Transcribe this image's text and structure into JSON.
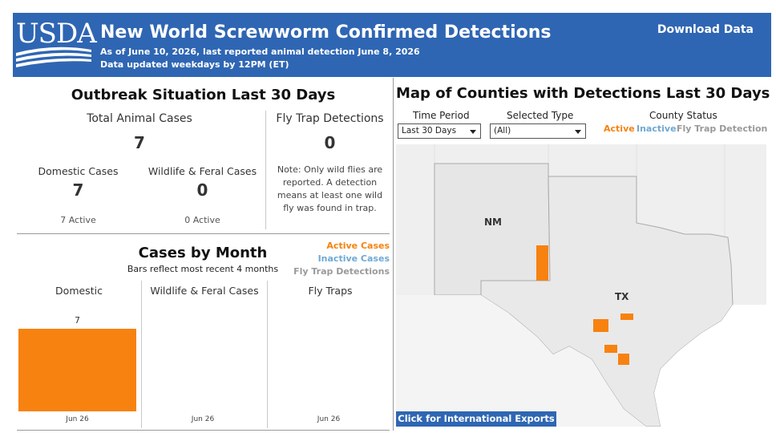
{
  "header": {
    "logo_text": "USDA",
    "title": "New World Screwworm Confirmed Detections",
    "subtitle_1": "As of June 10, 2026, last reported animal detection June 8, 2026",
    "subtitle_2": "Data updated weekdays by 12PM (ET)",
    "download_label": "Download Data"
  },
  "outbreak": {
    "title": "Outbreak Situation Last 30 Days",
    "total_label": "Total Animal Cases",
    "total_value": "7",
    "domestic_label": "Domestic Cases",
    "domestic_value": "7",
    "domestic_active": "7 Active",
    "wildlife_label": "Wildlife & Feral Cases",
    "wildlife_value": "0",
    "wildlife_active": "0 Active",
    "flytrap_label": "Fly Trap Detections",
    "flytrap_value": "0",
    "note": "Note: Only wild flies are reported. A detection means at least one wild fly was found in trap."
  },
  "cases_by_month": {
    "title": "Cases by Month",
    "subtitle": "Bars reflect most recent 4 months",
    "legend": {
      "active": "Active Cases",
      "inactive": "Inactive Cases",
      "flytrap": "Fly Trap Detections"
    }
  },
  "chart_data": {
    "type": "bar",
    "panels": [
      {
        "name": "Domestic",
        "categories": [
          "Jun 26"
        ],
        "values": [
          7
        ],
        "value_labels": [
          "7"
        ]
      },
      {
        "name": "Wildlife & Feral Cases",
        "categories": [
          "Jun 26"
        ],
        "values": [
          0
        ],
        "value_labels": [
          ""
        ]
      },
      {
        "name": "Fly Traps",
        "categories": [
          "Jun 26"
        ],
        "values": [
          0
        ],
        "value_labels": [
          ""
        ]
      }
    ],
    "ylim": [
      0,
      7
    ],
    "colors": {
      "active": "#f7820f",
      "inactive": "#6fa9d4",
      "flytrap": "#9a9a9a"
    }
  },
  "map": {
    "title": "Map of Counties with Detections Last 30 Days",
    "time_period_label": "Time Period",
    "time_period_value": "Last 30 Days",
    "selected_type_label": "Selected Type",
    "selected_type_value": "(All)",
    "county_status_label": "County Status",
    "status_active": "Active",
    "status_inactive": "Inactive",
    "status_flytrap": "Fly Trap Detection",
    "state_nm": "NM",
    "state_tx": "TX",
    "intl_button": "Click for International Exports"
  },
  "colors": {
    "header_blue": "#2f66b3",
    "active": "#f7820f",
    "inactive": "#6fa9d4",
    "flytrap": "#9a9a9a"
  }
}
